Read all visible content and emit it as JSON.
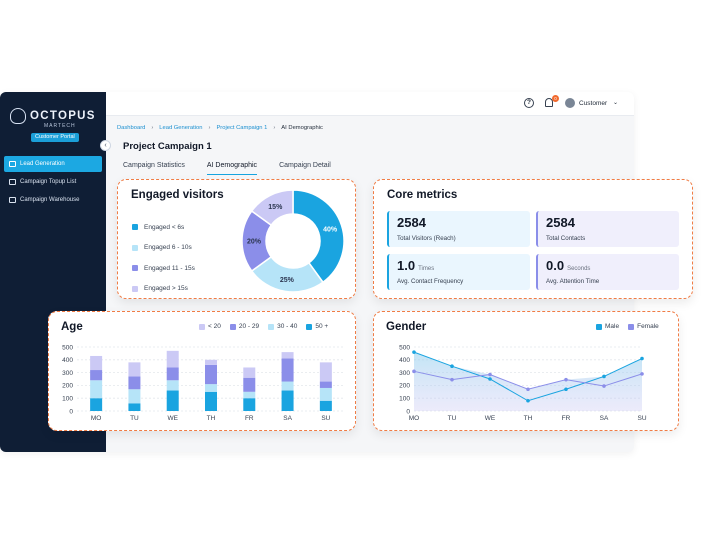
{
  "colors": {
    "sidebar": "#0f1e35",
    "accent": "#1ca8e2",
    "card_border": "#f07c45",
    "lt6": "#1aa4e0",
    "six_ten": "#b6e4f8",
    "eleven_fifteen": "#8b8ee9",
    "gt15": "#cbc9f5"
  },
  "brand": {
    "name": "OCTOPUS",
    "sub": "MARTECH",
    "portal_badge": "Customer Portal"
  },
  "sidebar": {
    "items": [
      {
        "label": "Lead Generation",
        "icon": "lead-generation-icon",
        "active": true
      },
      {
        "label": "Campaign Topup List",
        "icon": "topup-icon",
        "active": false
      },
      {
        "label": "Campaign Warehouse",
        "icon": "warehouse-icon",
        "active": false
      }
    ]
  },
  "topbar": {
    "notification_count": "0",
    "user_label": "Customer"
  },
  "breadcrumb": [
    "Dashboard",
    "Lead Generation",
    "Project Campaign 1",
    "AI Demographic"
  ],
  "page_title": "Project Campaign 1",
  "tabs": [
    "Campaign Statistics",
    "AI Demographic",
    "Campaign Detail"
  ],
  "engaged": {
    "title": "Engaged visitors",
    "legend": [
      "Engaged < 6s",
      "Engaged 6 - 10s",
      "Engaged 11 - 15s",
      "Engaged > 15s"
    ],
    "slices": [
      {
        "label": "40%",
        "value": 40
      },
      {
        "label": "25%",
        "value": 25
      },
      {
        "label": "20%",
        "value": 20
      },
      {
        "label": "15%",
        "value": 15
      }
    ]
  },
  "core": {
    "title": "Core metrics",
    "metrics": [
      {
        "value": "2584",
        "unit": "",
        "label": "Total Visitors (Reach)"
      },
      {
        "value": "2584",
        "unit": "",
        "label": "Total  Contacts"
      },
      {
        "value": "1.0",
        "unit": "Times",
        "label": "Avg. Contact Frequency"
      },
      {
        "value": "0.0",
        "unit": "Seconds",
        "label": "Avg. Attention Time"
      }
    ]
  },
  "age": {
    "title": "Age",
    "legend": [
      "< 20",
      "20 - 29",
      "30 - 40",
      "50 +"
    ]
  },
  "gender": {
    "title": "Gender",
    "legend": [
      "Male",
      "Female"
    ]
  },
  "chart_data": [
    {
      "type": "pie",
      "title": "Engaged visitors",
      "categories": [
        "Engaged < 6s",
        "Engaged 6 - 10s",
        "Engaged 11 - 15s",
        "Engaged > 15s"
      ],
      "values": [
        40,
        25,
        20,
        15
      ]
    },
    {
      "type": "bar",
      "stacked": true,
      "title": "Age",
      "categories": [
        "MO",
        "TU",
        "WE",
        "TH",
        "FR",
        "SA",
        "SU"
      ],
      "ylim": [
        0,
        500
      ],
      "yticks": [
        0,
        100,
        200,
        300,
        400,
        500
      ],
      "series": [
        {
          "name": "50 +",
          "values": [
            100,
            60,
            160,
            150,
            100,
            160,
            80
          ]
        },
        {
          "name": "30 - 40",
          "values": [
            140,
            110,
            80,
            60,
            50,
            70,
            100
          ]
        },
        {
          "name": "20 - 29",
          "values": [
            80,
            100,
            100,
            150,
            110,
            180,
            50
          ]
        },
        {
          "name": "< 20",
          "values": [
            110,
            110,
            130,
            40,
            80,
            50,
            150
          ]
        }
      ],
      "grid": true,
      "legend": "top-right"
    },
    {
      "type": "area",
      "title": "Gender",
      "categories": [
        "MO",
        "TU",
        "WE",
        "TH",
        "FR",
        "SA",
        "SU"
      ],
      "ylim": [
        0,
        500
      ],
      "yticks": [
        0,
        100,
        200,
        300,
        400,
        500
      ],
      "series": [
        {
          "name": "Male",
          "values": [
            460,
            350,
            250,
            80,
            170,
            270,
            410
          ]
        },
        {
          "name": "Female",
          "values": [
            310,
            245,
            285,
            170,
            245,
            195,
            290
          ]
        }
      ],
      "grid": true,
      "legend": "top-right"
    }
  ]
}
